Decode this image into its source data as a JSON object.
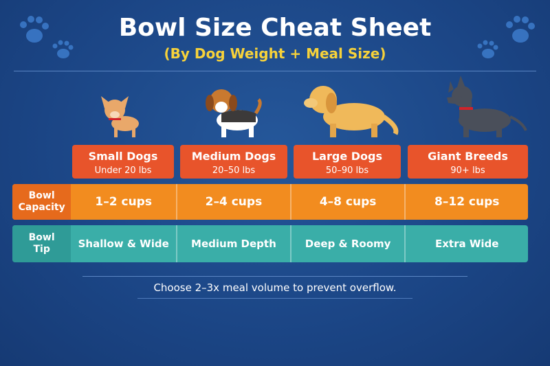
{
  "title": "Bowl Size Cheat Sheet",
  "subtitle": "(By Dog Weight + Meal Size)",
  "columns": [
    {
      "name": "Small Dogs",
      "weight": "Under 20 lbs"
    },
    {
      "name": "Medium Dogs",
      "weight": "20–50 lbs"
    },
    {
      "name": "Large Dogs",
      "weight": "50–90 lbs"
    },
    {
      "name": "Giant Breeds",
      "weight": "90+ lbs"
    }
  ],
  "rows": [
    {
      "label": "Bowl Capacity",
      "values": [
        "1–2 cups",
        "2–4 cups",
        "4–8 cups",
        "8–12 cups"
      ]
    },
    {
      "label": "Bowl Tip",
      "values": [
        "Shallow & Wide",
        "Medium Depth",
        "Deep & Roomy",
        "Extra Wide"
      ]
    }
  ],
  "footer": "Choose 2–3x meal volume to prevent overflow."
}
